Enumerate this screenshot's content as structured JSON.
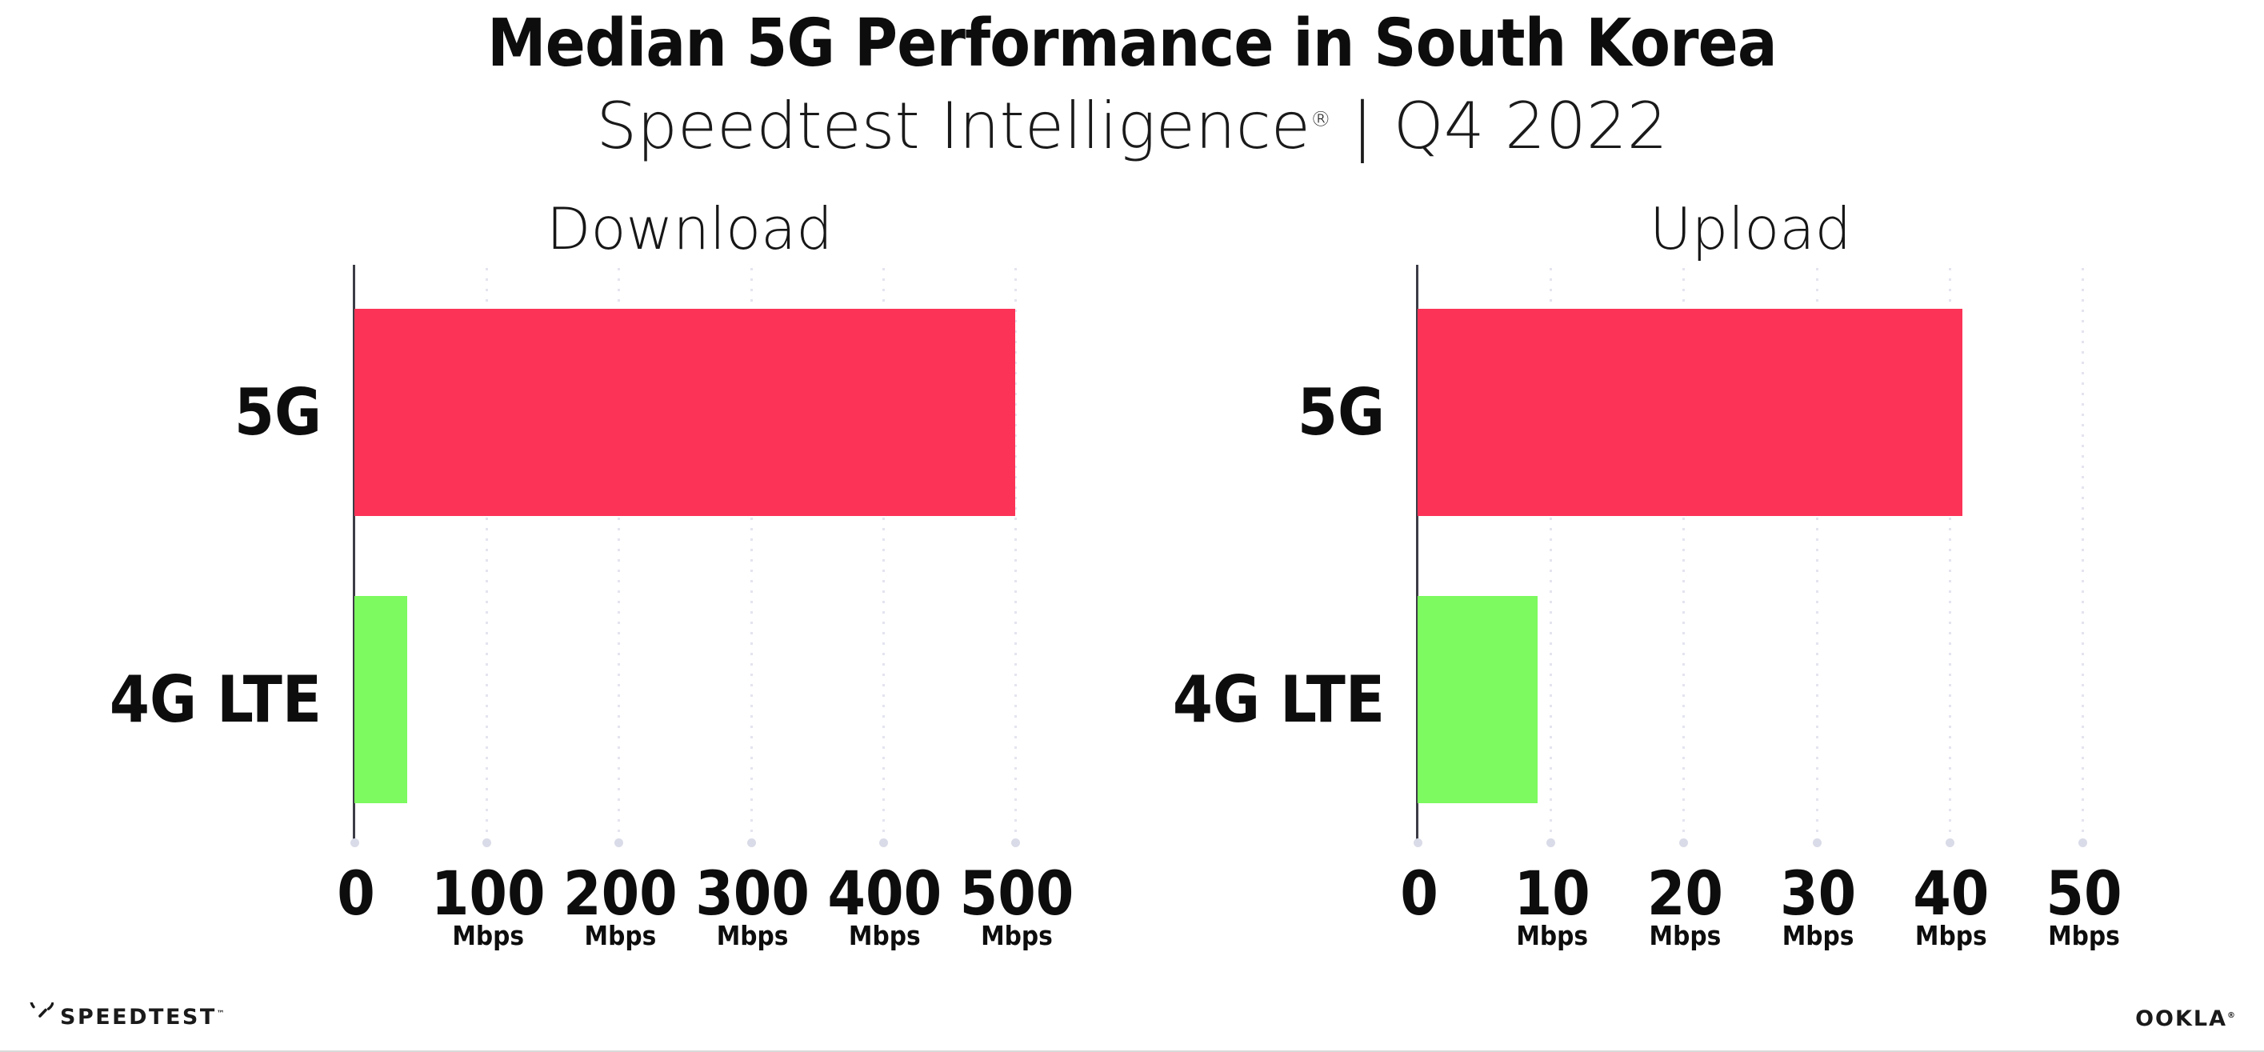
{
  "page": {
    "title": "Median 5G Performance in South Korea",
    "subtitle_brand": "Speedtest Intelligence",
    "subtitle_reg": "®",
    "subtitle_rest": " | Q4 2022"
  },
  "chart_data": [
    {
      "type": "bar",
      "orientation": "horizontal",
      "title": "Download",
      "categories": [
        "5G",
        "4G LTE"
      ],
      "values": [
        500,
        40
      ],
      "unit": "Mbps",
      "xlim": [
        0,
        500
      ],
      "xticks": [
        0,
        100,
        200,
        300,
        400,
        500
      ],
      "tick_unit_label": "Mbps",
      "grid": "vertical-dotted",
      "legend": "none",
      "bar_colors": [
        "#fc3357",
        "#7cfa5f"
      ]
    },
    {
      "type": "bar",
      "orientation": "horizontal",
      "title": "Upload",
      "categories": [
        "5G",
        "4G LTE"
      ],
      "values": [
        41,
        9
      ],
      "unit": "Mbps",
      "xlim": [
        0,
        50
      ],
      "xticks": [
        0,
        10,
        20,
        30,
        40,
        50
      ],
      "tick_unit_label": "Mbps",
      "grid": "vertical-dotted",
      "legend": "none",
      "bar_colors": [
        "#fc3357",
        "#7cfa5f"
      ]
    }
  ],
  "footer": {
    "speedtest_label": "SPEEDTEST",
    "speedtest_tm": "™",
    "ookla_label": "OOKLA",
    "ookla_reg": "®"
  },
  "colors": {
    "bar_5g": "#fc3357",
    "bar_4g": "#7cfa5f",
    "grid": "#e4e4f0",
    "x_axis": "#8f8f8f",
    "y_axis": "#3c3c46",
    "text": "#121212"
  }
}
